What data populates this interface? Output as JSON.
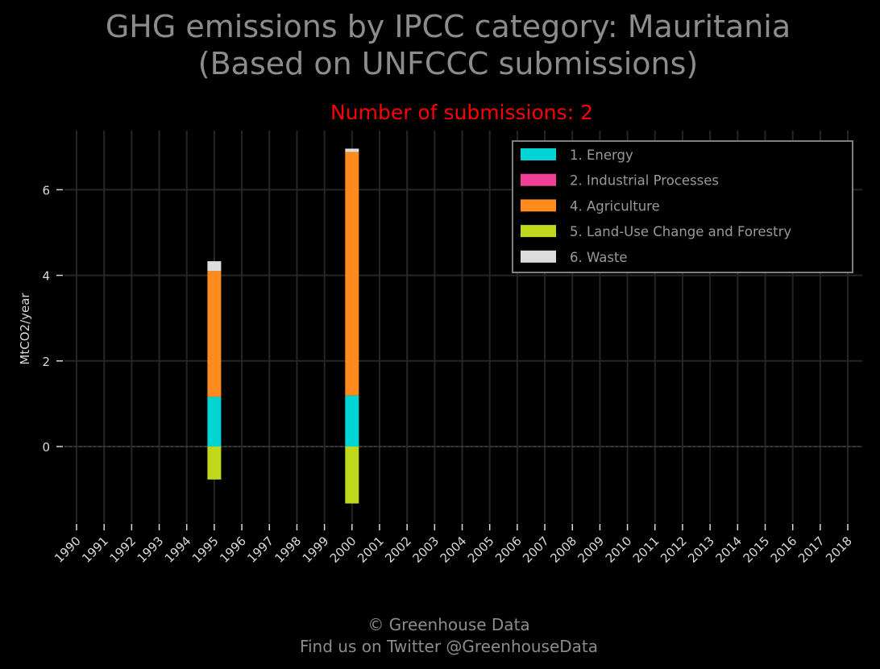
{
  "title_line1": "GHG emissions by IPCC category: Mauritania",
  "title_line2": "(Based on UNFCCC submissions)",
  "subtitle": "Number of submissions: 2",
  "footer_line1": "© Greenhouse Data",
  "footer_line2": "Find us on Twitter @GreenhouseData",
  "colors": {
    "background": "#000000",
    "grid": "#262626",
    "title": "#8c8c8c",
    "subtitle": "#ff0000",
    "legend_border": "#808080"
  },
  "chart_data": {
    "type": "bar",
    "stacked": true,
    "ylabel": "MtCO2/year",
    "xlabel": "",
    "ylim": [
      -1.8,
      7.4
    ],
    "yticks": [
      0,
      2,
      4,
      6
    ],
    "grid": true,
    "legend_position": "top-right",
    "categories": [
      "1990",
      "1991",
      "1992",
      "1993",
      "1994",
      "1995",
      "1996",
      "1997",
      "1998",
      "1999",
      "2000",
      "2001",
      "2002",
      "2003",
      "2004",
      "2005",
      "2006",
      "2007",
      "2008",
      "2009",
      "2010",
      "2011",
      "2012",
      "2013",
      "2014",
      "2015",
      "2016",
      "2017",
      "2018"
    ],
    "series": [
      {
        "name": "1. Energy",
        "color": "#00d4d4",
        "points": [
          {
            "x": "1995",
            "y": 1.16
          },
          {
            "x": "2000",
            "y": 1.19
          }
        ]
      },
      {
        "name": "2. Industrial Processes",
        "color": "#f0409a",
        "points": [
          {
            "x": "1995",
            "y": 0.0
          },
          {
            "x": "2000",
            "y": 0.0
          }
        ]
      },
      {
        "name": "4. Agriculture",
        "color": "#ff8a1e",
        "points": [
          {
            "x": "1995",
            "y": 2.94
          },
          {
            "x": "2000",
            "y": 5.69
          }
        ]
      },
      {
        "name": "5. Land-Use Change and Forestry",
        "color": "#c0d81c",
        "points": [
          {
            "x": "1995",
            "y": -0.77
          },
          {
            "x": "2000",
            "y": -1.33
          }
        ]
      },
      {
        "name": "6. Waste",
        "color": "#dddddd",
        "points": [
          {
            "x": "1995",
            "y": 0.23
          },
          {
            "x": "2000",
            "y": 0.08
          }
        ]
      }
    ]
  }
}
